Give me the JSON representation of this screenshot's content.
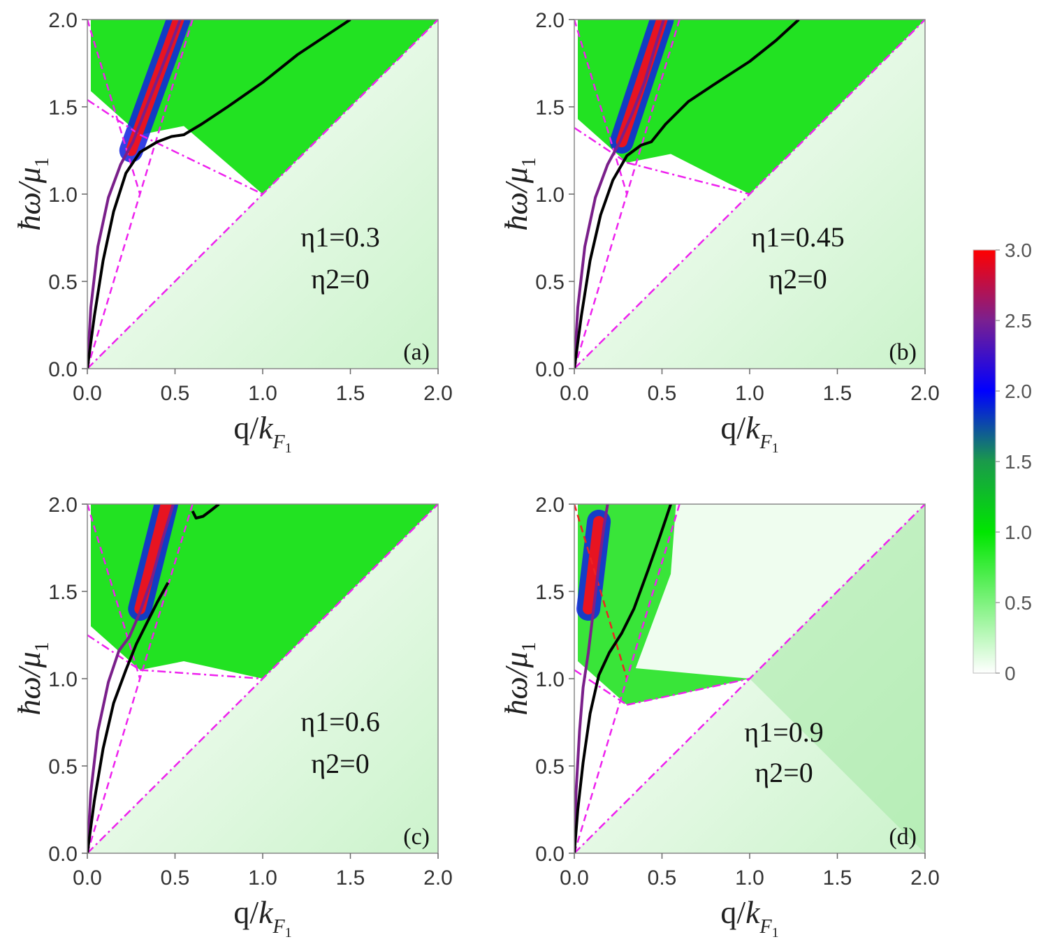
{
  "chart_data": [
    {
      "type": "heatmap",
      "panel_label": "(a)",
      "xlabel": "q/k_F1",
      "ylabel": "ħω/μ1",
      "xlim": [
        0,
        2
      ],
      "ylim": [
        0,
        2
      ],
      "x_ticks": [
        "0.0",
        "0.5",
        "1.0",
        "1.5",
        "2.0"
      ],
      "y_ticks": [
        "0.0",
        "0.5",
        "1.0",
        "1.5",
        "2.0"
      ],
      "annotation": [
        "η1=0.3",
        "η2=0"
      ],
      "ky": 1.54,
      "hot": [
        [
          0.25,
          1.25
        ],
        [
          0.52,
          2.0
        ]
      ],
      "series": [
        {
          "name": "purple branch",
          "color": "#7a1f8a",
          "x": [
            0.0,
            0.02,
            0.06,
            0.12,
            0.19,
            0.26,
            0.33,
            0.4,
            0.47,
            0.53
          ],
          "y": [
            0.0,
            0.35,
            0.7,
            0.98,
            1.17,
            1.3,
            1.48,
            1.66,
            1.84,
            2.0
          ]
        },
        {
          "name": "black branch",
          "color": "#000000",
          "x": [
            0.0,
            0.04,
            0.09,
            0.15,
            0.22,
            0.3,
            0.4,
            0.48,
            0.55,
            0.65,
            0.8,
            1.0,
            1.2,
            1.35,
            1.5
          ],
          "y": [
            0.0,
            0.3,
            0.62,
            0.9,
            1.12,
            1.24,
            1.3,
            1.33,
            1.34,
            1.4,
            1.5,
            1.64,
            1.8,
            1.9,
            2.0
          ]
        }
      ]
    },
    {
      "type": "heatmap",
      "panel_label": "(b)",
      "xlabel": "q/k_F1",
      "ylabel": "ħω/μ1",
      "xlim": [
        0,
        2
      ],
      "ylim": [
        0,
        2
      ],
      "x_ticks": [
        "0.0",
        "0.5",
        "1.0",
        "1.5",
        "2.0"
      ],
      "y_ticks": [
        "0.0",
        "0.5",
        "1.0",
        "1.5",
        "2.0"
      ],
      "annotation": [
        "η1=0.45",
        "η2=0"
      ],
      "ky": 1.38,
      "hot": [
        [
          0.27,
          1.3
        ],
        [
          0.5,
          2.0
        ]
      ],
      "series": [
        {
          "name": "purple branch",
          "color": "#7a1f8a",
          "x": [
            0.0,
            0.02,
            0.06,
            0.12,
            0.19,
            0.26,
            0.33,
            0.4,
            0.46,
            0.51
          ],
          "y": [
            0.0,
            0.35,
            0.7,
            0.98,
            1.17,
            1.3,
            1.46,
            1.64,
            1.84,
            2.0
          ]
        },
        {
          "name": "black branch",
          "color": "#000000",
          "x": [
            0.0,
            0.04,
            0.09,
            0.15,
            0.22,
            0.3,
            0.38,
            0.44,
            0.52,
            0.65,
            0.8,
            1.0,
            1.15,
            1.28
          ],
          "y": [
            0.0,
            0.3,
            0.62,
            0.88,
            1.08,
            1.22,
            1.28,
            1.3,
            1.4,
            1.53,
            1.63,
            1.76,
            1.88,
            2.0
          ]
        }
      ]
    },
    {
      "type": "heatmap",
      "panel_label": "(c)",
      "xlabel": "q/k_F1",
      "ylabel": "ħω/μ1",
      "xlim": [
        0,
        2
      ],
      "ylim": [
        0,
        2
      ],
      "x_ticks": [
        "0.0",
        "0.5",
        "1.0",
        "1.5",
        "2.0"
      ],
      "y_ticks": [
        "0.0",
        "0.5",
        "1.0",
        "1.5",
        "2.0"
      ],
      "annotation": [
        "η1=0.6",
        "η2=0"
      ],
      "ky": 1.25,
      "hot": [
        [
          0.3,
          1.4
        ],
        [
          0.45,
          2.0
        ]
      ],
      "series": [
        {
          "name": "purple branch",
          "color": "#7a1f8a",
          "x": [
            0.0,
            0.02,
            0.06,
            0.12,
            0.18,
            0.24,
            0.3,
            0.37,
            0.43,
            0.49
          ],
          "y": [
            0.0,
            0.35,
            0.7,
            0.98,
            1.16,
            1.24,
            1.38,
            1.58,
            1.8,
            2.0
          ]
        },
        {
          "name": "black branch",
          "color": "#000000",
          "x": [
            0.0,
            0.04,
            0.09,
            0.15,
            0.22,
            0.28,
            0.34,
            0.4,
            0.46
          ],
          "y": [
            0.0,
            0.3,
            0.6,
            0.86,
            1.05,
            1.2,
            1.32,
            1.44,
            1.55
          ]
        },
        {
          "name": "black branch upper",
          "color": "#000000",
          "x": [
            0.6,
            0.62,
            0.66,
            0.7,
            0.75
          ],
          "y": [
            1.96,
            1.92,
            1.93,
            1.96,
            2.0
          ]
        }
      ]
    },
    {
      "type": "heatmap",
      "panel_label": "(d)",
      "xlabel": "q/k_F1",
      "ylabel": "ħω/μ1",
      "xlim": [
        0,
        2
      ],
      "ylim": [
        0,
        2
      ],
      "x_ticks": [
        "0.0",
        "0.5",
        "1.0",
        "1.5",
        "2.0"
      ],
      "y_ticks": [
        "0.0",
        "0.5",
        "1.0",
        "1.5",
        "2.0"
      ],
      "annotation": [
        "η1=0.9",
        "η2=0"
      ],
      "ky": 1.05,
      "hot": [
        [
          0.08,
          1.4
        ],
        [
          0.14,
          1.9
        ]
      ],
      "series": [
        {
          "name": "purple branch",
          "color": "#7a1f8a",
          "x": [
            0.0,
            0.01,
            0.03,
            0.05,
            0.08,
            0.11,
            0.14,
            0.17,
            0.19
          ],
          "y": [
            0.0,
            0.35,
            0.7,
            0.95,
            1.15,
            1.4,
            1.65,
            1.88,
            2.0
          ]
        },
        {
          "name": "black branch",
          "color": "#000000",
          "x": [
            0.0,
            0.02,
            0.05,
            0.09,
            0.14,
            0.2,
            0.27,
            0.34,
            0.42,
            0.49,
            0.55
          ],
          "y": [
            0.0,
            0.25,
            0.52,
            0.8,
            1.02,
            1.15,
            1.26,
            1.4,
            1.62,
            1.82,
            2.0
          ]
        }
      ]
    }
  ],
  "colorbar": {
    "ticks": [
      "0",
      "0.5",
      "1.0",
      "1.5",
      "2.0",
      "2.5",
      "3.0"
    ],
    "min": 0,
    "max": 3.0,
    "stops": [
      "#ffffff",
      "#7ef27e",
      "#00e600",
      "#1a9a4a",
      "#0000ff",
      "#7a2090",
      "#ff0000"
    ]
  }
}
